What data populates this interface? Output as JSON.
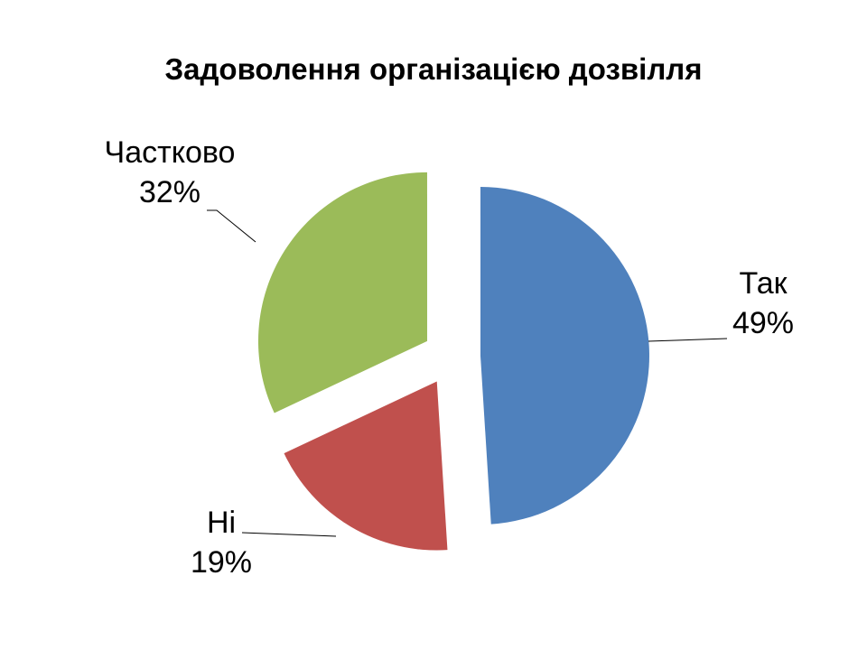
{
  "chart_data": {
    "type": "pie",
    "title": "Задоволення організацією дозвілля",
    "slices": [
      {
        "label": "Так",
        "percent_label": "49%",
        "value": 49,
        "color": "#4F81BD"
      },
      {
        "label": "Ні",
        "percent_label": "19%",
        "value": 19,
        "color": "#C0504D"
      },
      {
        "label": "Частково",
        "percent_label": "32%",
        "value": 32,
        "color": "#9BBB59"
      }
    ],
    "exploded": true,
    "legend": "none"
  }
}
